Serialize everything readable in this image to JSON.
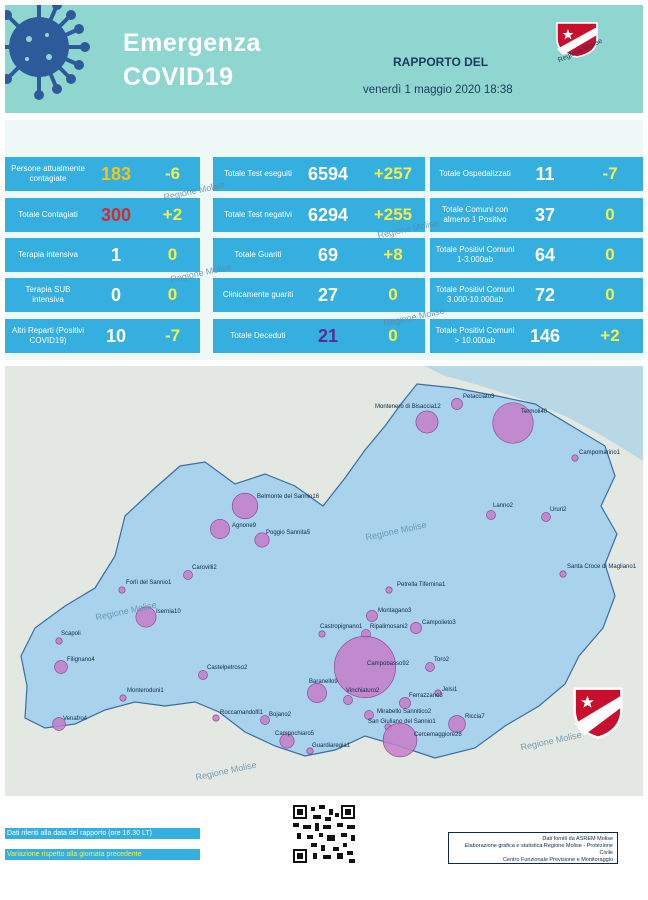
{
  "header": {
    "title_line1": "Emergenza",
    "title_line2": "COVID19",
    "report_label": "RAPPORTO DEL",
    "report_date": "venerdì 1 maggio 2020 18:38",
    "logo_text": "Regione Molise"
  },
  "stats": {
    "col1": [
      {
        "label": "Persone attualmente contagiate",
        "value": "183",
        "delta": "-6",
        "value_color": "#f5c518"
      },
      {
        "label": "Totale Contagiati",
        "value": "300",
        "delta": "+2",
        "value_color": "#d62b2b"
      },
      {
        "label": "Terapia intensiva",
        "value": "1",
        "delta": "0",
        "value_color": "#ffffff"
      },
      {
        "label": "Terapia SUB intensiva",
        "value": "0",
        "delta": "0",
        "value_color": "#ffffff"
      },
      {
        "label": "Altri Reparti (Positivi COVID19)",
        "value": "10",
        "delta": "-7",
        "value_color": "#ffffff"
      }
    ],
    "col2": [
      {
        "label": "Totale Test eseguiti",
        "value": "6594",
        "delta": "+257",
        "value_color": "#ffffff"
      },
      {
        "label": "Totale Test negativi",
        "value": "6294",
        "delta": "+255",
        "value_color": "#ffffff"
      },
      {
        "label": "Totale Guariti",
        "value": "69",
        "delta": "+8",
        "value_color": "#ffffff"
      },
      {
        "label": "Clinicamente guariti",
        "value": "27",
        "delta": "0",
        "value_color": "#ffffff"
      },
      {
        "label": "Totale Deceduti",
        "value": "21",
        "delta": "0",
        "value_color": "#5a2d91"
      }
    ],
    "col3": [
      {
        "label": "Totale Ospedalizzati",
        "value": "11",
        "delta": "-7",
        "value_color": "#ffffff"
      },
      {
        "label": "Totale Comuni con almeno 1 Positivo",
        "value": "37",
        "delta": "0",
        "value_color": "#ffffff"
      },
      {
        "label": "Totale Positivi Comuni 1-3.000ab",
        "value": "64",
        "delta": "0",
        "value_color": "#ffffff"
      },
      {
        "label": "Totale Positivi Comuni 3.000-10.000ab",
        "value": "72",
        "delta": "0",
        "value_color": "#ffffff"
      },
      {
        "label": "Totale Positivi Comuni > 10.000ab",
        "value": "146",
        "delta": "+2",
        "value_color": "#ffffff"
      }
    ],
    "watermark": "Regione Molise"
  },
  "map": {
    "watermark": "Regione Molise",
    "places": [
      {
        "name": "Petacciato3",
        "count": 3
      },
      {
        "name": "Montenero di Bisaccia12",
        "count": 12
      },
      {
        "name": "Termoli40",
        "count": 40
      },
      {
        "name": "Campomarino1",
        "count": 1
      },
      {
        "name": "Belmonte del Sannio16",
        "count": 16
      },
      {
        "name": "Agnone9",
        "count": 9
      },
      {
        "name": "Poggio Sannita5",
        "count": 5
      },
      {
        "name": "Lanno2",
        "count": 2
      },
      {
        "name": "Ururi2",
        "count": 2
      },
      {
        "name": "Carovilli2",
        "count": 2
      },
      {
        "name": "Forlì del Sannio1",
        "count": 1
      },
      {
        "name": "Santa Croce di Magliano1",
        "count": 1
      },
      {
        "name": "Petrella Tifernina1",
        "count": 1
      },
      {
        "name": "Montagano3",
        "count": 3
      },
      {
        "name": "Campolieto3",
        "count": 3
      },
      {
        "name": "Scapoli",
        "count": 1
      },
      {
        "name": "Isernia10",
        "count": 10
      },
      {
        "name": "Castropignano1",
        "count": 1
      },
      {
        "name": "Ripalimosani2",
        "count": 2
      },
      {
        "name": "Filignano4",
        "count": 4
      },
      {
        "name": "Castelpetroso2",
        "count": 2
      },
      {
        "name": "Campobasso92",
        "count": 92
      },
      {
        "name": "Toro2",
        "count": 2
      },
      {
        "name": "Monteroduni1",
        "count": 1
      },
      {
        "name": "Baranello9",
        "count": 9
      },
      {
        "name": "Jelsi1",
        "count": 1
      },
      {
        "name": "Vinchiaturo2",
        "count": 2
      },
      {
        "name": "Ferrazzano3",
        "count": 3
      },
      {
        "name": "Roccamandolfi1",
        "count": 1
      },
      {
        "name": "Bojano2",
        "count": 2
      },
      {
        "name": "Mirabello Sannitico2",
        "count": 2
      },
      {
        "name": "San Giuliano del Sannio1",
        "count": 1
      },
      {
        "name": "Riccia7",
        "count": 7
      },
      {
        "name": "Venafro4",
        "count": 4
      },
      {
        "name": "Campochiaro5",
        "count": 5
      },
      {
        "name": "Guardiaregia1",
        "count": 1
      },
      {
        "name": "Cercemaggiore28",
        "count": 28
      }
    ]
  },
  "footer": {
    "note1": "Dati riferiti alla data del rapporto  (ore 16.30 LT)",
    "note2": "Variazione rispetto alla giornata precedente",
    "credit_line1": "Dati forniti da ASREM Molise",
    "credit_line2": "Elaborazione grafica e statistica Regione Molise - Protezione Civile",
    "credit_line3": "Centro Funzionale Previsione e Monitoraggio"
  },
  "colors": {
    "card_bg": "#35aee0",
    "delta": "#f3f04a",
    "map_region": "#a9d2ec",
    "bubble": "#c77ec9",
    "header_bg": "#8fd6d0"
  }
}
